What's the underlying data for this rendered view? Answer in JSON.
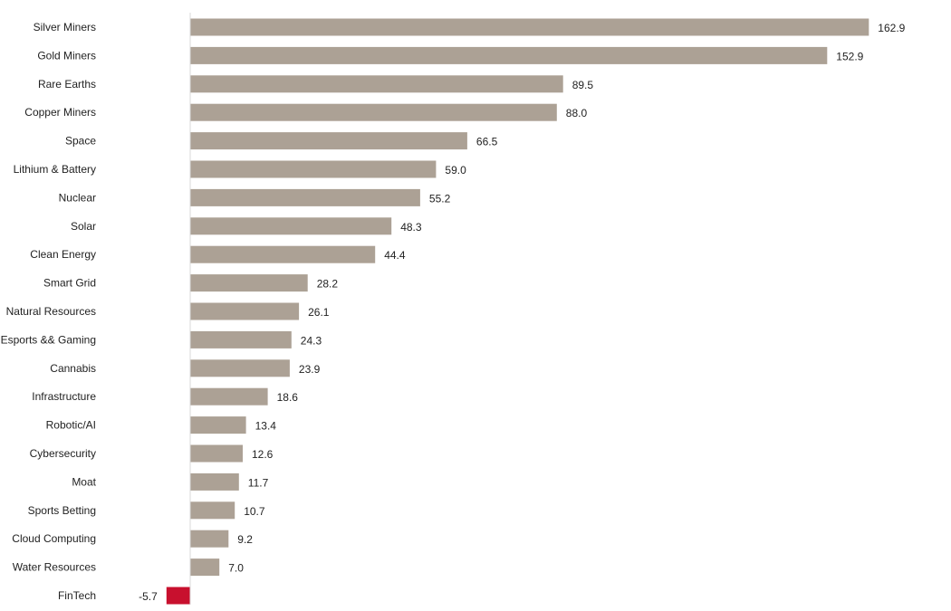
{
  "chart_data": {
    "type": "bar",
    "orientation": "horizontal",
    "categories": [
      "Silver Miners",
      "Gold Miners",
      "Rare Earths",
      "Copper Miners",
      "Space",
      "Lithium & Battery",
      "Nuclear",
      "Solar",
      "Clean Energy",
      "Smart Grid",
      "Natural Resources",
      "Esports && Gaming",
      "Cannabis",
      "Infrastructure",
      "Robotic/AI",
      "Cybersecurity",
      "Moat",
      "Sports Betting",
      "Cloud Computing",
      "Water Resources",
      "FinTech"
    ],
    "values": [
      162.9,
      152.9,
      89.5,
      88.0,
      66.5,
      59.0,
      55.2,
      48.3,
      44.4,
      28.2,
      26.1,
      24.3,
      23.9,
      18.6,
      13.4,
      12.6,
      11.7,
      10.7,
      9.2,
      7.0,
      -5.7
    ],
    "value_labels": [
      "162.9",
      "152.9",
      "89.5",
      "88.0",
      "66.5",
      "59.0",
      "55.2",
      "48.3",
      "44.4",
      "28.2",
      "26.1",
      "24.3",
      "23.9",
      "18.6",
      "13.4",
      "12.6",
      "11.7",
      "10.7",
      "9.2",
      "7.0",
      "-5.7"
    ],
    "title": "",
    "xlabel": "",
    "ylabel": "",
    "xlim": [
      -5.7,
      162.9
    ],
    "grid": false,
    "legend": "none",
    "colors": {
      "positive": "#aca195",
      "negative": "#c8102e",
      "axis": "#d9d9d9"
    }
  }
}
